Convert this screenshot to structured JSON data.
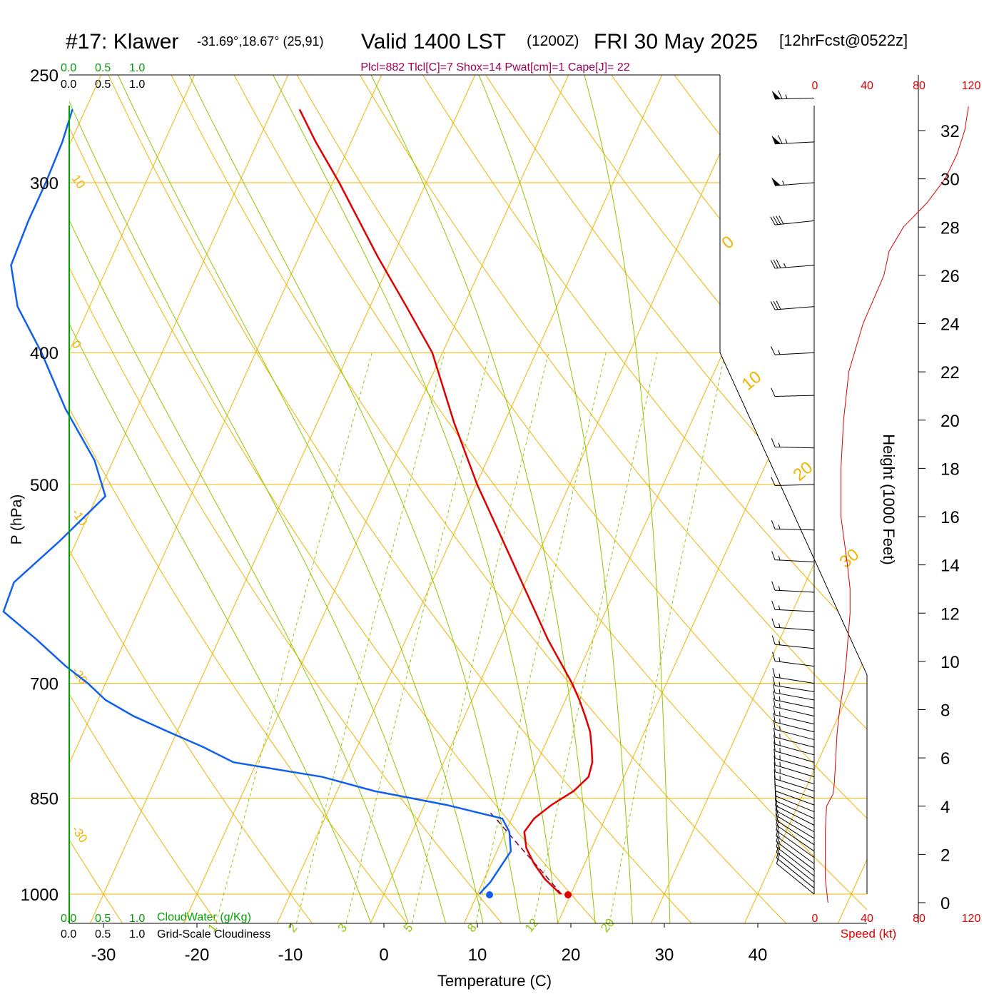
{
  "header": {
    "station": "#17: Klawer",
    "coords": "-31.69°,18.67° (25,91)",
    "valid": "Valid 1400 LST",
    "zulu": "(1200Z)",
    "date": "FRI 30 May 2025",
    "forecast": "[12hrFcst@0522z]"
  },
  "indices": "Plcl=882 Tlcl[C]=7 Shox=14 Pwat[cm]=1 Cape[J]= 22",
  "scales": {
    "cloud_water_ticks": [
      "0.0",
      "0.5",
      "1.0"
    ],
    "cloudiness_ticks": [
      "0.0",
      "0.5",
      "1.0"
    ],
    "cloud_water_label": "CloudWater (g/Kg)",
    "cloudiness_label": "Grid-Scale Cloudiness"
  },
  "colors": {
    "isotherm": "#f0b400",
    "moist_adiabat": "#8cc800",
    "mixing_ratio": "#8cc800",
    "temperature": "#e00000",
    "dewpoint": "#1060f0",
    "parcel": "#800040",
    "indices": "#a0005a",
    "speed": "#e00000",
    "cloud": "#00a000"
  },
  "chart_data": {
    "type": "line",
    "subtype": "skew-T log-P sounding",
    "xlabel": "Temperature (C)",
    "ylabel": "P (hPa)",
    "x_ticks": [
      "-30",
      "-20",
      "-10",
      "0",
      "10",
      "20",
      "30",
      "40"
    ],
    "pressure_ticks": [
      {
        "p": 250,
        "label": "250"
      },
      {
        "p": 300,
        "label": "300"
      },
      {
        "p": 400,
        "label": "400"
      },
      {
        "p": 500,
        "label": "500"
      },
      {
        "p": 700,
        "label": "700"
      },
      {
        "p": 850,
        "label": "850"
      },
      {
        "p": 1000,
        "label": "1000"
      }
    ],
    "isotherm_labels": [
      "10",
      "0",
      "-10",
      "-20",
      "-30",
      "0",
      "10",
      "20",
      "30"
    ],
    "mixing_ratio_labels": [
      "1",
      "2",
      "3",
      "5",
      "8",
      "12",
      "20"
    ],
    "temperature": [
      {
        "p": 1000,
        "t": 18.9
      },
      {
        "p": 975,
        "t": 16.5
      },
      {
        "p": 950,
        "t": 14.6
      },
      {
        "p": 925,
        "t": 13.0
      },
      {
        "p": 900,
        "t": 12.0
      },
      {
        "p": 880,
        "t": 12.4
      },
      {
        "p": 860,
        "t": 13.6
      },
      {
        "p": 840,
        "t": 15.3
      },
      {
        "p": 820,
        "t": 16.2
      },
      {
        "p": 800,
        "t": 15.9
      },
      {
        "p": 780,
        "t": 15.1
      },
      {
        "p": 760,
        "t": 14.2
      },
      {
        "p": 740,
        "t": 12.9
      },
      {
        "p": 720,
        "t": 11.5
      },
      {
        "p": 700,
        "t": 9.9
      },
      {
        "p": 650,
        "t": 5.2
      },
      {
        "p": 600,
        "t": 0.6
      },
      {
        "p": 550,
        "t": -4.4
      },
      {
        "p": 500,
        "t": -9.9
      },
      {
        "p": 450,
        "t": -15.4
      },
      {
        "p": 400,
        "t": -21.1
      },
      {
        "p": 370,
        "t": -26.1
      },
      {
        "p": 340,
        "t": -31.6
      },
      {
        "p": 300,
        "t": -39.3
      },
      {
        "p": 280,
        "t": -43.8
      },
      {
        "p": 265,
        "t": -47.1
      }
    ],
    "dewpoint": [
      {
        "p": 1000,
        "t": 10.2
      },
      {
        "p": 980,
        "t": 10.8
      },
      {
        "p": 930,
        "t": 11.5
      },
      {
        "p": 900,
        "t": 10.4
      },
      {
        "p": 880,
        "t": 9.0
      },
      {
        "p": 860,
        "t": 2.4
      },
      {
        "p": 840,
        "t": -6.0
      },
      {
        "p": 820,
        "t": -12.3
      },
      {
        "p": 800,
        "t": -22.5
      },
      {
        "p": 780,
        "t": -26.4
      },
      {
        "p": 760,
        "t": -30.9
      },
      {
        "p": 740,
        "t": -35.4
      },
      {
        "p": 720,
        "t": -39.2
      },
      {
        "p": 700,
        "t": -41.9
      },
      {
        "p": 680,
        "t": -45.1
      },
      {
        "p": 650,
        "t": -49.5
      },
      {
        "p": 620,
        "t": -54.4
      },
      {
        "p": 590,
        "t": -54.7
      },
      {
        "p": 550,
        "t": -51.8
      },
      {
        "p": 510,
        "t": -49.1
      },
      {
        "p": 480,
        "t": -52.0
      },
      {
        "p": 440,
        "t": -57.6
      },
      {
        "p": 400,
        "t": -62.9
      },
      {
        "p": 370,
        "t": -67.7
      },
      {
        "p": 345,
        "t": -70.4
      },
      {
        "p": 320,
        "t": -70.7
      },
      {
        "p": 300,
        "t": -70.7
      },
      {
        "p": 280,
        "t": -70.9
      },
      {
        "p": 265,
        "t": -71.4
      }
    ],
    "parcel": [
      {
        "p": 1000,
        "t": 19.0
      },
      {
        "p": 960,
        "t": 15.6
      },
      {
        "p": 920,
        "t": 12.0
      },
      {
        "p": 883,
        "t": 8.6
      },
      {
        "p": 870,
        "t": 7.3
      }
    ],
    "surface_temperature": 19.7,
    "surface_dewpoint": 11.3,
    "wind_barbs": [
      {
        "p": 1000,
        "dir": 170,
        "kt": 10
      },
      {
        "p": 990,
        "dir": 168,
        "kt": 10
      },
      {
        "p": 980,
        "dir": 165,
        "kt": 10
      },
      {
        "p": 970,
        "dir": 160,
        "kt": 10
      },
      {
        "p": 960,
        "dir": 155,
        "kt": 10
      },
      {
        "p": 950,
        "dir": 150,
        "kt": 10
      },
      {
        "p": 940,
        "dir": 145,
        "kt": 10
      },
      {
        "p": 930,
        "dir": 140,
        "kt": 10
      },
      {
        "p": 920,
        "dir": 130,
        "kt": 10
      },
      {
        "p": 910,
        "dir": 120,
        "kt": 10
      },
      {
        "p": 900,
        "dir": 110,
        "kt": 10
      },
      {
        "p": 890,
        "dir": 100,
        "kt": 10
      },
      {
        "p": 880,
        "dir": 90,
        "kt": 10
      },
      {
        "p": 870,
        "dir": 80,
        "kt": 10
      },
      {
        "p": 860,
        "dir": 70,
        "kt": 10
      },
      {
        "p": 850,
        "dir": 65,
        "kt": 10
      },
      {
        "p": 840,
        "dir": 60,
        "kt": 15
      },
      {
        "p": 830,
        "dir": 60,
        "kt": 15
      },
      {
        "p": 820,
        "dir": 58,
        "kt": 15
      },
      {
        "p": 810,
        "dir": 55,
        "kt": 15
      },
      {
        "p": 800,
        "dir": 55,
        "kt": 15
      },
      {
        "p": 790,
        "dir": 52,
        "kt": 15
      },
      {
        "p": 780,
        "dir": 50,
        "kt": 15
      },
      {
        "p": 770,
        "dir": 50,
        "kt": 15
      },
      {
        "p": 760,
        "dir": 48,
        "kt": 15
      },
      {
        "p": 750,
        "dir": 45,
        "kt": 15
      },
      {
        "p": 740,
        "dir": 45,
        "kt": 15
      },
      {
        "p": 730,
        "dir": 40,
        "kt": 15
      },
      {
        "p": 720,
        "dir": 35,
        "kt": 15
      },
      {
        "p": 710,
        "dir": 30,
        "kt": 15
      },
      {
        "p": 700,
        "dir": 30,
        "kt": 15
      },
      {
        "p": 680,
        "dir": 25,
        "kt": 15
      },
      {
        "p": 660,
        "dir": 20,
        "kt": 15
      },
      {
        "p": 640,
        "dir": 15,
        "kt": 15
      },
      {
        "p": 620,
        "dir": 10,
        "kt": 15
      },
      {
        "p": 600,
        "dir": 10,
        "kt": 15
      },
      {
        "p": 570,
        "dir": 10,
        "kt": 15
      },
      {
        "p": 540,
        "dir": 5,
        "kt": 15
      },
      {
        "p": 500,
        "dir": 355,
        "kt": 10
      },
      {
        "p": 470,
        "dir": 5,
        "kt": 15
      },
      {
        "p": 430,
        "dir": 355,
        "kt": 10
      },
      {
        "p": 400,
        "dir": 350,
        "kt": 15
      },
      {
        "p": 370,
        "dir": 345,
        "kt": 30
      },
      {
        "p": 345,
        "dir": 345,
        "kt": 35
      },
      {
        "p": 320,
        "dir": 340,
        "kt": 40
      },
      {
        "p": 300,
        "dir": 345,
        "kt": 55
      },
      {
        "p": 280,
        "dir": 350,
        "kt": 65
      },
      {
        "p": 260,
        "dir": 355,
        "kt": 65
      }
    ],
    "height_axis": {
      "label": "Height (1000 Feet)",
      "ticks": [
        "0",
        "2",
        "4",
        "6",
        "8",
        "10",
        "12",
        "14",
        "16",
        "18",
        "20",
        "22",
        "24",
        "26",
        "28",
        "30",
        "32"
      ]
    },
    "wind_speed_axis": {
      "label": "Speed (kt)",
      "ticks": [
        "0",
        "40",
        "80",
        "120"
      ],
      "xlim": [
        0,
        120
      ]
    },
    "wind_speed_profile": [
      {
        "ft": 0,
        "kt": 10
      },
      {
        "ft": 1000,
        "kt": 8
      },
      {
        "ft": 2000,
        "kt": 8
      },
      {
        "ft": 3000,
        "kt": 8
      },
      {
        "ft": 4000,
        "kt": 9
      },
      {
        "ft": 4500,
        "kt": 14
      },
      {
        "ft": 5000,
        "kt": 15
      },
      {
        "ft": 6000,
        "kt": 16
      },
      {
        "ft": 7000,
        "kt": 17
      },
      {
        "ft": 8000,
        "kt": 19
      },
      {
        "ft": 9000,
        "kt": 22
      },
      {
        "ft": 10000,
        "kt": 24
      },
      {
        "ft": 12000,
        "kt": 27
      },
      {
        "ft": 13000,
        "kt": 27
      },
      {
        "ft": 14000,
        "kt": 25
      },
      {
        "ft": 16000,
        "kt": 20
      },
      {
        "ft": 18000,
        "kt": 20
      },
      {
        "ft": 20000,
        "kt": 22
      },
      {
        "ft": 22000,
        "kt": 26
      },
      {
        "ft": 24000,
        "kt": 37
      },
      {
        "ft": 26000,
        "kt": 53
      },
      {
        "ft": 27000,
        "kt": 57
      },
      {
        "ft": 28000,
        "kt": 68
      },
      {
        "ft": 29000,
        "kt": 86
      },
      {
        "ft": 30000,
        "kt": 100
      },
      {
        "ft": 31000,
        "kt": 109
      },
      {
        "ft": 32000,
        "kt": 115
      },
      {
        "ft": 33000,
        "kt": 118
      }
    ]
  }
}
